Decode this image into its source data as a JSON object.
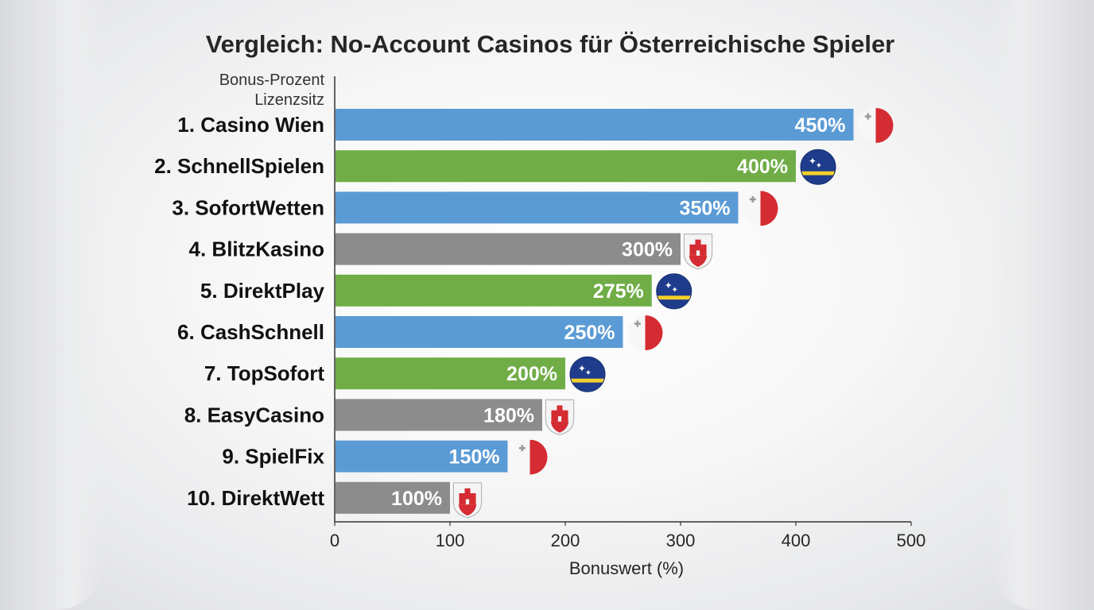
{
  "chart_data": {
    "type": "bar",
    "orientation": "horizontal",
    "title": "Vergleich: No-Account Casinos für Österreichische Spieler",
    "legend_labels": [
      "Bonus-Prozent",
      "Lizenzsitz"
    ],
    "xlabel": "Bonuswert (%)",
    "ylabel": "",
    "xlim": [
      0,
      500
    ],
    "x_ticks": [
      0,
      100,
      200,
      300,
      400,
      500
    ],
    "grid": false,
    "categories": [
      "1. Casino Wien",
      "2. SchnellSpielen",
      "3. SofortWetten",
      "4. BlitzKasino",
      "5. DirektPlay",
      "6. CashSchnell",
      "7. TopSofort",
      "8. EasyCasino",
      "9. SpielFix",
      "10. DirektWett"
    ],
    "values": [
      450,
      400,
      350,
      300,
      275,
      250,
      200,
      180,
      150,
      100
    ],
    "value_labels": [
      "450%",
      "400%",
      "350%",
      "300%",
      "275%",
      "250%",
      "200%",
      "180%",
      "150%",
      "100%"
    ],
    "bar_colors": [
      "#5b9bd5",
      "#70ad47",
      "#5b9bd5",
      "#8c8c8c",
      "#70ad47",
      "#5b9bd5",
      "#70ad47",
      "#8c8c8c",
      "#5b9bd5",
      "#8c8c8c"
    ],
    "license_icons": [
      "malta-flag-icon",
      "curacao-flag-icon",
      "malta-flag-icon",
      "gibraltar-crest-icon",
      "curacao-flag-icon",
      "malta-flag-icon",
      "curacao-flag-icon",
      "gibraltar-crest-icon",
      "malta-flag-icon",
      "gibraltar-crest-icon"
    ]
  }
}
